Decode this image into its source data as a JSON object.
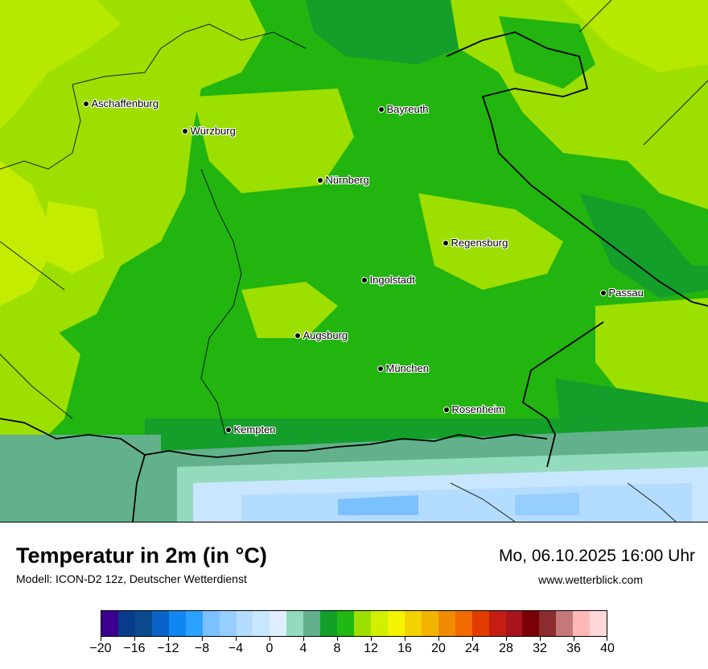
{
  "title": "Temperatur in 2m (in °C)",
  "model": "Modell: ICON-D2 12z, Deutscher Wetterdienst",
  "datetime": "Mo, 06.10.2025 16:00 Uhr",
  "website": "www.wetterblick.com",
  "cities": [
    {
      "name": "Aschaffenburg"
    },
    {
      "name": "Würzburg"
    },
    {
      "name": "Bayreuth"
    },
    {
      "name": "Nürnberg"
    },
    {
      "name": "Regensburg"
    },
    {
      "name": "Ingolstadt"
    },
    {
      "name": "Passau"
    },
    {
      "name": "Augsburg"
    },
    {
      "name": "München"
    },
    {
      "name": "Rosenheim"
    },
    {
      "name": "Kempten"
    }
  ],
  "legend": {
    "colors": [
      "#3b0090",
      "#083b8a",
      "#0a4a8c",
      "#0b63c7",
      "#0f86f2",
      "#2aa2ff",
      "#7cc1ff",
      "#96ceff",
      "#b4dcff",
      "#c9e6ff",
      "#e0efff",
      "#93dbbd",
      "#63b18c",
      "#149e2a",
      "#20b812",
      "#9ddf00",
      "#d0f000",
      "#f4f400",
      "#f4d200",
      "#f2b300",
      "#f08a00",
      "#f06a00",
      "#e23c00",
      "#c41e12",
      "#a8141c",
      "#7a0008",
      "#8c2d2d",
      "#c47878",
      "#ffb8b8",
      "#ffd9d9"
    ],
    "labels": [
      "−20",
      "−16",
      "−12",
      "−8",
      "−4",
      "0",
      "4",
      "8",
      "12",
      "16",
      "20",
      "24",
      "28",
      "32",
      "36",
      "40"
    ]
  }
}
